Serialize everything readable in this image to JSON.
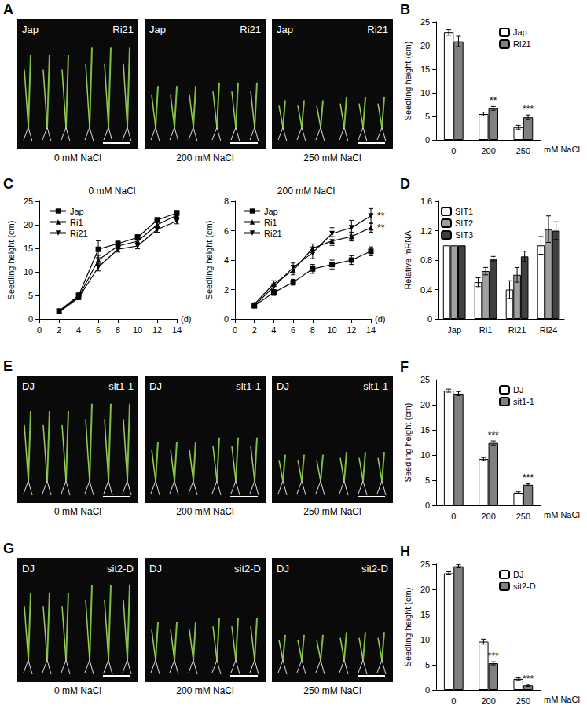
{
  "photo_panels": [
    {
      "panel": "A",
      "left_label": "Jap",
      "right_label": "Ri21",
      "conditions": [
        "0 mM NaCl",
        "200 mM NaCl",
        "250 mM NaCl"
      ]
    },
    {
      "panel": "E",
      "left_label": "DJ",
      "right_label": "sit1-1",
      "conditions": [
        "0 mM NaCl",
        "200 mM NaCl",
        "250 mM NaCl"
      ]
    },
    {
      "panel": "G",
      "left_label": "DJ",
      "right_label": "sit2-D",
      "conditions": [
        "0 mM NaCl",
        "200 mM NaCl",
        "250 mM NaCl"
      ]
    }
  ],
  "chart_data": [
    {
      "panel": "B",
      "type": "bar",
      "categories": [
        "0",
        "200",
        "250"
      ],
      "x_label": "mM NaCl",
      "y_label": "Seedling height (cm)",
      "ylim": [
        0,
        25
      ],
      "yticks": [
        0,
        5,
        10,
        15,
        20,
        25
      ],
      "grid": false,
      "legend": "top-right",
      "series": [
        {
          "name": "Jap",
          "color": "#ffffff",
          "values": [
            22.8,
            5.5,
            2.7
          ],
          "errors": [
            0.6,
            0.4,
            0.4
          ]
        },
        {
          "name": "Ri21",
          "color": "#808080",
          "values": [
            20.9,
            6.7,
            4.8
          ],
          "errors": [
            1.1,
            0.4,
            0.5
          ],
          "significance": [
            null,
            "**",
            "***"
          ]
        }
      ]
    },
    {
      "panel": "C",
      "type": "line",
      "title": "0 mM NaCl",
      "x_label": "(d)",
      "y_label": "Seedling height (cm)",
      "x": [
        2,
        4,
        6,
        8,
        10,
        12,
        14
      ],
      "xlim": [
        0,
        14
      ],
      "xticks": [
        0,
        2,
        4,
        6,
        8,
        10,
        12,
        14
      ],
      "ylim": [
        0,
        25
      ],
      "yticks": [
        0,
        5,
        10,
        15,
        20,
        25
      ],
      "grid": false,
      "legend": "top-left",
      "series": [
        {
          "name": "Jap",
          "color": "#000000",
          "marker": "square",
          "values": [
            1.7,
            5.0,
            14.8,
            16.0,
            17.3,
            21.0,
            22.5
          ],
          "errors": [
            0.3,
            0.5,
            1.8,
            0.5,
            0.6,
            0.5,
            0.5
          ]
        },
        {
          "name": "Ri1",
          "color": "#000000",
          "marker": "triangle",
          "values": [
            1.6,
            4.7,
            12.5,
            15.5,
            16.5,
            20.0,
            22.0
          ],
          "errors": [
            0.3,
            0.4,
            1.0,
            0.6,
            0.6,
            0.6,
            0.6
          ]
        },
        {
          "name": "Ri21",
          "color": "#000000",
          "marker": "triangle-down",
          "values": [
            1.5,
            4.5,
            11.0,
            14.8,
            15.5,
            19.0,
            20.8
          ],
          "errors": [
            0.3,
            0.4,
            0.8,
            0.6,
            0.6,
            0.6,
            0.6
          ]
        }
      ]
    },
    {
      "type": "line",
      "title": "200 mM NaCl",
      "x_label": "(d)",
      "y_label": "Seedling height (cm)",
      "x": [
        2,
        4,
        6,
        8,
        10,
        12,
        14
      ],
      "xlim": [
        0,
        14
      ],
      "xticks": [
        0,
        2,
        4,
        6,
        8,
        10,
        12,
        14
      ],
      "ylim": [
        0,
        8
      ],
      "yticks": [
        0,
        2,
        4,
        6,
        8
      ],
      "grid": false,
      "legend": "top-left",
      "series": [
        {
          "name": "Jap",
          "color": "#000000",
          "marker": "square",
          "values": [
            0.9,
            1.8,
            2.5,
            3.4,
            3.7,
            4.0,
            4.6
          ],
          "errors": [
            0.1,
            0.2,
            0.2,
            0.3,
            0.3,
            0.3,
            0.3
          ]
        },
        {
          "name": "Ri1",
          "color": "#000000",
          "marker": "triangle",
          "values": [
            1.0,
            2.4,
            3.3,
            4.8,
            5.3,
            5.6,
            6.2
          ],
          "errors": [
            0.1,
            0.2,
            0.3,
            0.3,
            0.3,
            0.3,
            0.3
          ],
          "significance": [
            null,
            null,
            null,
            null,
            null,
            null,
            "**"
          ]
        },
        {
          "name": "Ri21",
          "color": "#000000",
          "marker": "triangle-down",
          "values": [
            0.9,
            2.2,
            3.5,
            4.5,
            5.8,
            6.2,
            7.0
          ],
          "errors": [
            0.1,
            0.2,
            0.3,
            0.4,
            0.4,
            0.5,
            0.5
          ],
          "significance": [
            null,
            null,
            null,
            null,
            null,
            null,
            "**"
          ]
        }
      ]
    },
    {
      "panel": "D",
      "type": "bar",
      "categories": [
        "Jap",
        "Ri1",
        "Ri21",
        "Ri24"
      ],
      "y_label": "Relative mRNA",
      "ylim": [
        0,
        1.6
      ],
      "yticks": [
        0,
        0.4,
        0.8,
        1.2,
        1.6
      ],
      "grid": false,
      "legend": "top-left",
      "series": [
        {
          "name": "SIT1",
          "color": "#ffffff",
          "values": [
            1.0,
            0.5,
            0.4,
            1.0
          ],
          "errors": [
            0,
            0.06,
            0.12,
            0.12
          ]
        },
        {
          "name": "SIT2",
          "color": "#a0a0a0",
          "values": [
            1.0,
            0.65,
            0.6,
            1.22
          ],
          "errors": [
            0,
            0.05,
            0.1,
            0.18
          ]
        },
        {
          "name": "SIT3",
          "color": "#404040",
          "values": [
            1.0,
            0.82,
            0.85,
            1.2
          ],
          "errors": [
            0,
            0.03,
            0.07,
            0.12
          ]
        }
      ]
    },
    {
      "panel": "F",
      "type": "bar",
      "categories": [
        "0",
        "200",
        "250"
      ],
      "x_label": "mM NaCl",
      "y_label": "Seedling height (cm)",
      "ylim": [
        0,
        25
      ],
      "yticks": [
        0,
        5,
        10,
        15,
        20,
        25
      ],
      "grid": false,
      "legend": "top-right",
      "series": [
        {
          "name": "DJ",
          "color": "#ffffff",
          "values": [
            22.8,
            9.2,
            2.5
          ],
          "errors": [
            0.3,
            0.3,
            0.2
          ]
        },
        {
          "name": "sit1-1",
          "color": "#808080",
          "values": [
            22.2,
            12.4,
            4.1
          ],
          "errors": [
            0.4,
            0.4,
            0.2
          ],
          "significance": [
            null,
            "***",
            "***"
          ]
        }
      ]
    },
    {
      "panel": "H",
      "type": "bar",
      "categories": [
        "0",
        "200",
        "250"
      ],
      "x_label": "mM NaCl",
      "y_label": "Seedling height (cm)",
      "ylim": [
        0,
        25
      ],
      "yticks": [
        0,
        5,
        10,
        15,
        20,
        25
      ],
      "grid": false,
      "legend": "top-right",
      "series": [
        {
          "name": "DJ",
          "color": "#ffffff",
          "values": [
            23.2,
            9.6,
            2.2
          ],
          "errors": [
            0.3,
            0.5,
            0.2
          ]
        },
        {
          "name": "sit2-D",
          "color": "#808080",
          "values": [
            24.6,
            5.3,
            0.9
          ],
          "errors": [
            0.3,
            0.3,
            0.2
          ],
          "significance": [
            null,
            "***",
            "***"
          ]
        }
      ]
    }
  ]
}
